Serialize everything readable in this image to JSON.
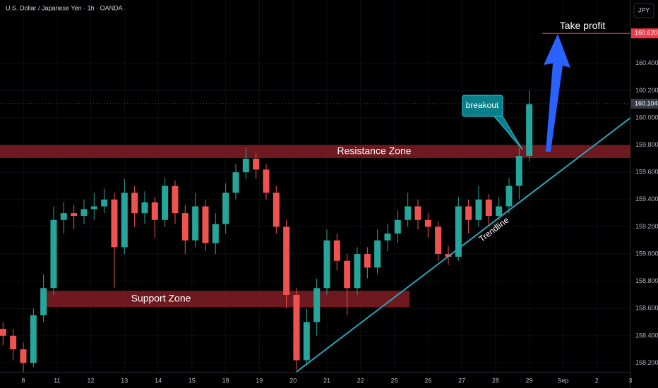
{
  "chart_data": {
    "type": "candlestick",
    "title": "U.S. Dollar / Japanese Yen · 1h · OANDA",
    "currency": "JPY",
    "x": [
      -0.6,
      -0.3,
      0,
      0.3,
      0.6,
      0.9,
      1.2,
      1.5,
      1.8,
      2.1,
      2.4,
      2.7,
      3,
      3.3,
      3.6,
      3.9,
      4.2,
      4.5,
      4.8,
      5.1,
      5.4,
      5.7,
      6,
      6.3,
      6.6,
      6.9,
      7.2,
      7.5,
      7.8,
      8.1,
      8.4,
      8.7,
      9,
      9.3,
      9.6,
      9.9,
      10.2,
      10.5,
      10.8,
      11.1,
      11.4,
      11.7,
      12,
      12.3,
      12.6,
      12.9,
      13.2,
      13.5,
      13.8,
      14.1,
      14.4,
      14.7,
      15
    ],
    "open": [
      158.45,
      158.4,
      158.3,
      158.2,
      158.55,
      158.75,
      159.25,
      159.3,
      159.28,
      159.33,
      159.35,
      159.4,
      159.05,
      159.45,
      159.3,
      159.38,
      159.25,
      159.5,
      159.3,
      159.1,
      159.35,
      159.08,
      159.22,
      159.45,
      159.6,
      159.7,
      159.62,
      159.45,
      159.2,
      158.7,
      158.22,
      158.5,
      158.75,
      159.1,
      158.95,
      158.75,
      159.0,
      158.9,
      159.1,
      159.15,
      159.25,
      159.35,
      159.25,
      159.2,
      159.0,
      158.98,
      159.35,
      159.25,
      159.4,
      159.28,
      159.35,
      159.5,
      159.72
    ],
    "high": [
      158.5,
      158.45,
      158.35,
      158.6,
      158.85,
      159.35,
      159.38,
      159.36,
      159.4,
      159.45,
      159.48,
      159.45,
      159.55,
      159.5,
      159.46,
      159.42,
      159.56,
      159.54,
      159.36,
      159.45,
      159.4,
      159.3,
      159.52,
      159.66,
      159.78,
      159.74,
      159.66,
      159.5,
      159.25,
      158.75,
      158.6,
      158.82,
      159.18,
      159.15,
      159.0,
      159.05,
      159.05,
      159.18,
      159.22,
      159.32,
      159.45,
      159.4,
      159.3,
      159.24,
      159.06,
      159.42,
      159.4,
      159.5,
      159.44,
      159.42,
      159.56,
      159.78,
      160.2
    ],
    "low": [
      158.33,
      158.22,
      158.13,
      158.17,
      158.5,
      158.7,
      159.15,
      159.18,
      159.22,
      159.25,
      159.3,
      158.75,
      159.0,
      159.2,
      159.22,
      159.12,
      159.2,
      159.22,
      159.0,
      159.05,
      159.02,
      159.0,
      159.15,
      159.4,
      159.55,
      159.55,
      159.4,
      159.15,
      158.6,
      158.15,
      158.18,
      158.4,
      158.7,
      158.88,
      158.55,
      158.7,
      158.82,
      158.85,
      159.02,
      159.08,
      159.2,
      159.18,
      159.12,
      158.95,
      158.92,
      158.95,
      159.15,
      159.2,
      159.2,
      159.25,
      159.3,
      159.4,
      159.68
    ],
    "close": [
      158.4,
      158.3,
      158.2,
      158.55,
      158.75,
      159.25,
      159.3,
      159.28,
      159.33,
      159.35,
      159.4,
      159.05,
      159.45,
      159.3,
      159.38,
      159.25,
      159.5,
      159.3,
      159.1,
      159.35,
      159.08,
      159.22,
      159.45,
      159.6,
      159.7,
      159.62,
      159.45,
      159.2,
      158.7,
      158.22,
      158.5,
      158.75,
      159.1,
      158.95,
      158.75,
      159.0,
      158.9,
      159.1,
      159.15,
      159.25,
      159.35,
      159.25,
      159.2,
      159.0,
      158.98,
      159.35,
      159.25,
      159.4,
      159.28,
      159.35,
      159.5,
      159.72,
      160.1
    ],
    "up_color": "#26a69a",
    "down_color": "#ef5350",
    "xlim": [
      -0.69,
      18
    ],
    "xticks": [
      {
        "value": 0,
        "label": "8"
      },
      {
        "value": 1,
        "label": "11"
      },
      {
        "value": 2,
        "label": "12"
      },
      {
        "value": 3,
        "label": "13"
      },
      {
        "value": 4,
        "label": "14"
      },
      {
        "value": 5,
        "label": "15"
      },
      {
        "value": 6,
        "label": "18"
      },
      {
        "value": 7,
        "label": "19"
      },
      {
        "value": 8,
        "label": "20"
      },
      {
        "value": 9,
        "label": "21"
      },
      {
        "value": 10,
        "label": "22"
      },
      {
        "value": 11,
        "label": "25"
      },
      {
        "value": 12,
        "label": "26"
      },
      {
        "value": 13,
        "label": "27"
      },
      {
        "value": 14,
        "label": "28"
      },
      {
        "value": 15,
        "label": "29"
      },
      {
        "value": 16,
        "label": "Sep"
      },
      {
        "value": 17,
        "label": "2"
      },
      {
        "value": 18,
        "label": "3"
      }
    ],
    "ylim": [
      158.13,
      160.865
    ],
    "yticks": [
      {
        "value": 158.2,
        "label": "158.200"
      },
      {
        "value": 158.4,
        "label": "158.400"
      },
      {
        "value": 158.6,
        "label": "158.600"
      },
      {
        "value": 158.8,
        "label": "158.800"
      },
      {
        "value": 159,
        "label": "159.000"
      },
      {
        "value": 159.2,
        "label": "159.200"
      },
      {
        "value": 159.4,
        "label": "159.400"
      },
      {
        "value": 159.6,
        "label": "159.600"
      },
      {
        "value": 159.8,
        "label": "159.800"
      },
      {
        "value": 160,
        "label": "160.000"
      },
      {
        "value": 160.2,
        "label": "160.200"
      },
      {
        "value": 160.4,
        "label": "160.400"
      }
    ],
    "grid": true,
    "current_price": {
      "value": 160.104,
      "label": "160.104"
    },
    "take_profit": {
      "text": "Take profit",
      "value": 160.62,
      "label": "160.620"
    },
    "zones": [
      {
        "text": "Resistance Zone",
        "range": [
          159.705,
          159.8
        ]
      },
      {
        "text": "Support Zone",
        "range": [
          158.61,
          158.73
        ]
      }
    ],
    "trendline": {
      "text": "Trendline",
      "x": [
        8.1,
        18
      ],
      "y": [
        158.135,
        160.0
      ]
    },
    "breakout": "breakout"
  }
}
